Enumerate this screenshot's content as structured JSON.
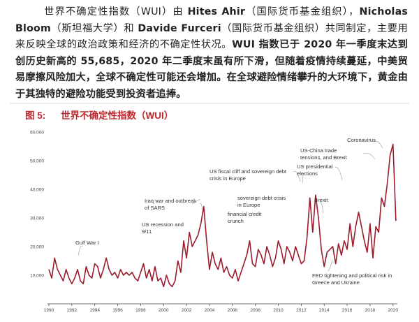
{
  "text": {
    "runs": [
      {
        "text": "世界不确定性指数（WUI）由 ",
        "bold": false
      },
      {
        "text": "Hites Ahir",
        "bold": true
      },
      {
        "text": "（国际货币基金组织），",
        "bold": false
      },
      {
        "text": "Nicholas Bloom",
        "bold": true
      },
      {
        "text": "（斯坦福大学）和 ",
        "bold": false
      },
      {
        "text": "Davide Furceri",
        "bold": true
      },
      {
        "text": "（国际货币基金组织）共同制定，主要用来反映全球的政治政策和经济的不确定性状况。",
        "bold": false
      },
      {
        "text": "WUI 指数已于 2020 年一季度末达到创历史新高的 55,685，2020 年二季度末虽有所下滑，但随着疫情持续蔓延，中美贸易摩擦风险加大，全球不确定性可能还会增加。在全球避险情绪攀升的大环境下，黄金由于其独特的避险功能受到投资者追捧。",
        "bold": true
      }
    ]
  },
  "chart_data": {
    "type": "line",
    "figure_label": "图 5:",
    "title": "世界不确定性指数（WUI）",
    "x": [
      1990,
      1990.25,
      1990.5,
      1990.75,
      1991,
      1991.25,
      1991.5,
      1991.75,
      1992,
      1992.25,
      1992.5,
      1992.75,
      1993,
      1993.25,
      1993.5,
      1993.75,
      1994,
      1994.25,
      1994.5,
      1994.75,
      1995,
      1995.25,
      1995.5,
      1995.75,
      1996,
      1996.25,
      1996.5,
      1996.75,
      1997,
      1997.25,
      1997.5,
      1997.75,
      1998,
      1998.25,
      1998.5,
      1998.75,
      1999,
      1999.25,
      1999.5,
      1999.75,
      2000,
      2000.25,
      2000.5,
      2000.75,
      2001,
      2001.25,
      2001.5,
      2001.75,
      2002,
      2002.25,
      2002.5,
      2002.75,
      2003,
      2003.25,
      2003.5,
      2003.75,
      2004,
      2004.25,
      2004.5,
      2004.75,
      2005,
      2005.25,
      2005.5,
      2005.75,
      2006,
      2006.25,
      2006.5,
      2006.75,
      2007,
      2007.25,
      2007.5,
      2007.75,
      2008,
      2008.25,
      2008.5,
      2008.75,
      2009,
      2009.25,
      2009.5,
      2009.75,
      2010,
      2010.25,
      2010.5,
      2010.75,
      2011,
      2011.25,
      2011.5,
      2011.75,
      2012,
      2012.25,
      2012.5,
      2012.75,
      2013,
      2013.25,
      2013.5,
      2013.75,
      2014,
      2014.25,
      2014.5,
      2014.75,
      2015,
      2015.25,
      2015.5,
      2015.75,
      2016,
      2016.25,
      2016.5,
      2016.75,
      2017,
      2017.25,
      2017.5,
      2017.75,
      2018,
      2018.25,
      2018.5,
      2018.75,
      2019,
      2019.25,
      2019.5,
      2019.75,
      2020,
      2020.25
    ],
    "series": [
      {
        "color": "#9b1b2b",
        "values": [
          12000,
          9000,
          16000,
          12000,
          10000,
          8000,
          12000,
          9000,
          7000,
          9000,
          12000,
          8000,
          7000,
          13000,
          10000,
          9000,
          14000,
          13000,
          9000,
          12000,
          16000,
          12000,
          10000,
          11000,
          9000,
          12000,
          10000,
          11000,
          10000,
          11000,
          9000,
          8000,
          11000,
          14000,
          9000,
          12000,
          8000,
          13000,
          8000,
          9000,
          6000,
          10000,
          7000,
          6000,
          8000,
          15000,
          11000,
          22000,
          16000,
          25000,
          20000,
          22000,
          24000,
          28000,
          34000,
          22000,
          12000,
          18000,
          14000,
          12000,
          16000,
          11000,
          13000,
          10000,
          9000,
          12000,
          8000,
          11000,
          14000,
          17000,
          22000,
          14000,
          13000,
          19000,
          17000,
          14000,
          20000,
          17000,
          13000,
          16000,
          22000,
          19000,
          14000,
          20000,
          18000,
          15000,
          20000,
          17000,
          14000,
          15000,
          23000,
          37000,
          25000,
          38000,
          30000,
          19000,
          13000,
          18000,
          19000,
          20000,
          14000,
          21000,
          17000,
          22000,
          19000,
          28000,
          20000,
          27000,
          32000,
          27000,
          22000,
          18000,
          28000,
          16000,
          27000,
          25000,
          37000,
          34000,
          42000,
          52000,
          55685,
          29000
        ]
      }
    ],
    "xlim": [
      1990,
      2020.5
    ],
    "xticks": [
      1990,
      1992,
      1994,
      1996,
      1998,
      2000,
      2002,
      2004,
      2006,
      2008,
      2010,
      2012,
      2014,
      2016,
      2018,
      2020
    ],
    "ylim": [
      0,
      60000
    ],
    "yticks": [
      {
        "value": 10000,
        "label": "10,000"
      },
      {
        "value": 20000,
        "label": "20,000"
      },
      {
        "value": 30000,
        "label": "30,000"
      },
      {
        "value": 40000,
        "label": "40,000"
      },
      {
        "value": 50000,
        "label": "50,000"
      },
      {
        "value": 60000,
        "label": "60,000"
      }
    ],
    "grid": false,
    "annotations": [
      "Gulf War I",
      "Iraq war and outbreak of SARS",
      "US recession and 9/11",
      "financial credit crunch",
      "US fiscal cliff and sovereign debt crisis in Europe",
      "sovereign debt crisis in Europe",
      "US presidential elections",
      "US-China trade tensions, and Brexit",
      "Coronavirus",
      "Brexit",
      "FED tightening and political risk in Greece and Ukraine"
    ]
  }
}
